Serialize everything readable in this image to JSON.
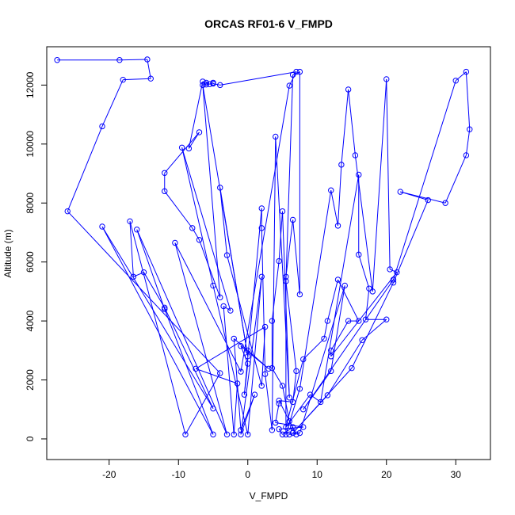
{
  "chart_data": {
    "type": "scatter",
    "title": "ORCAS RF01-6 V_FMPD",
    "xlabel": "V_FMPD",
    "ylabel": "Altitude (m)",
    "xlim": [
      -29,
      35
    ],
    "ylim": [
      -700,
      13300
    ],
    "x_ticks": [
      -20,
      -10,
      0,
      10,
      20,
      30
    ],
    "y_ticks": [
      0,
      2000,
      4000,
      6000,
      8000,
      10000,
      12000
    ],
    "grid": false,
    "legend": "none",
    "line_color": "#0000ff",
    "marker": "open-circle",
    "series": [
      {
        "values": [
          [
            -27.5,
            12850
          ],
          [
            -18.5,
            12850
          ],
          [
            -14.5,
            12870
          ],
          [
            -14,
            12220
          ],
          [
            -18,
            12180
          ],
          [
            -21,
            10600
          ],
          [
            -26,
            7720
          ],
          [
            -4,
            2230
          ],
          [
            -9,
            150
          ],
          [
            -17,
            7380
          ],
          [
            -16.5,
            5500
          ],
          [
            -15,
            5650
          ],
          [
            -12,
            4450
          ],
          [
            -5,
            1030
          ],
          [
            -21,
            7200
          ],
          [
            -5,
            150
          ],
          [
            -12,
            4400
          ],
          [
            -16,
            7100
          ],
          [
            -3,
            150
          ],
          [
            -10.5,
            6650
          ],
          [
            -1,
            2280
          ],
          [
            6,
            11980
          ],
          [
            7,
            12450
          ],
          [
            -4,
            12000
          ],
          [
            -5,
            12050
          ],
          [
            -5,
            12080
          ],
          [
            -5.5,
            12030
          ],
          [
            -6,
            12080
          ],
          [
            -6,
            12020
          ],
          [
            -6.5,
            12120
          ],
          [
            -8.5,
            9850
          ],
          [
            -7,
            10400
          ],
          [
            -12,
            9020
          ],
          [
            -12,
            8400
          ],
          [
            -8,
            7150
          ],
          [
            -7,
            6750
          ],
          [
            -4,
            4800
          ],
          [
            -6.5,
            12000
          ],
          [
            0,
            2800
          ],
          [
            -4,
            8520
          ],
          [
            -3,
            6230
          ],
          [
            2,
            1800
          ],
          [
            2.5,
            3800
          ],
          [
            -7.5,
            2380
          ],
          [
            -1.5,
            1880
          ],
          [
            -2,
            150
          ],
          [
            -3.5,
            4500
          ],
          [
            -2.5,
            4350
          ],
          [
            -9.5,
            9880
          ],
          [
            -5,
            5200
          ],
          [
            0,
            150
          ],
          [
            2,
            5500
          ],
          [
            -1,
            150
          ],
          [
            1,
            1500
          ],
          [
            -1,
            300
          ],
          [
            -2,
            3400
          ],
          [
            0,
            3000
          ],
          [
            3,
            2380
          ],
          [
            -1,
            3150
          ],
          [
            0,
            2550
          ],
          [
            -0.5,
            1500
          ],
          [
            2,
            7820
          ],
          [
            2,
            7150
          ],
          [
            2.5,
            2200
          ],
          [
            3.5,
            300
          ],
          [
            4,
            10250
          ],
          [
            6,
            1400
          ],
          [
            5,
            7720
          ],
          [
            4.5,
            6030
          ],
          [
            3.5,
            4000
          ],
          [
            3.5,
            2400
          ],
          [
            5,
            1800
          ],
          [
            6,
            600
          ],
          [
            7,
            150
          ],
          [
            4.5,
            1300
          ],
          [
            6.5,
            1250
          ],
          [
            7,
            2300
          ],
          [
            5.5,
            5350
          ],
          [
            6.5,
            12350
          ],
          [
            7.5,
            12450
          ],
          [
            7.5,
            4900
          ],
          [
            6.5,
            7430
          ],
          [
            5.5,
            5500
          ],
          [
            5.5,
            150
          ],
          [
            7.5,
            1700
          ],
          [
            12,
            8430
          ],
          [
            13,
            7230
          ],
          [
            13.5,
            9300
          ],
          [
            14.5,
            11850
          ],
          [
            15.5,
            9620
          ],
          [
            18,
            5000
          ],
          [
            20,
            12200
          ],
          [
            20.5,
            5750
          ],
          [
            21.5,
            5650
          ],
          [
            12,
            2800
          ],
          [
            12,
            3000
          ],
          [
            14.5,
            4000
          ],
          [
            16,
            4000
          ],
          [
            13,
            5400
          ],
          [
            11.5,
            4000
          ],
          [
            11,
            3400
          ],
          [
            8,
            2700
          ],
          [
            5.5,
            400
          ],
          [
            9,
            1500
          ],
          [
            10.5,
            1250
          ],
          [
            16,
            8960
          ],
          [
            16,
            6250
          ],
          [
            17.5,
            5100
          ],
          [
            17,
            4050
          ],
          [
            20,
            4050
          ],
          [
            16.5,
            3350
          ],
          [
            11.5,
            1480
          ],
          [
            6.5,
            200
          ],
          [
            15,
            2400
          ],
          [
            21,
            5300
          ],
          [
            26,
            8100
          ],
          [
            22,
            8380
          ],
          [
            28.5,
            8000
          ],
          [
            31.5,
            9620
          ],
          [
            32,
            10500
          ],
          [
            31.5,
            12450
          ],
          [
            30,
            12150
          ],
          [
            21,
            5400
          ],
          [
            8,
            1000
          ],
          [
            12,
            2300
          ],
          [
            14,
            5200
          ],
          [
            7.5,
            200
          ],
          [
            6,
            150
          ],
          [
            6.5,
            400
          ],
          [
            5,
            150
          ],
          [
            4.5,
            330
          ],
          [
            8,
            400
          ],
          [
            4,
            550
          ],
          [
            4.5,
            1200
          ]
        ]
      }
    ]
  }
}
